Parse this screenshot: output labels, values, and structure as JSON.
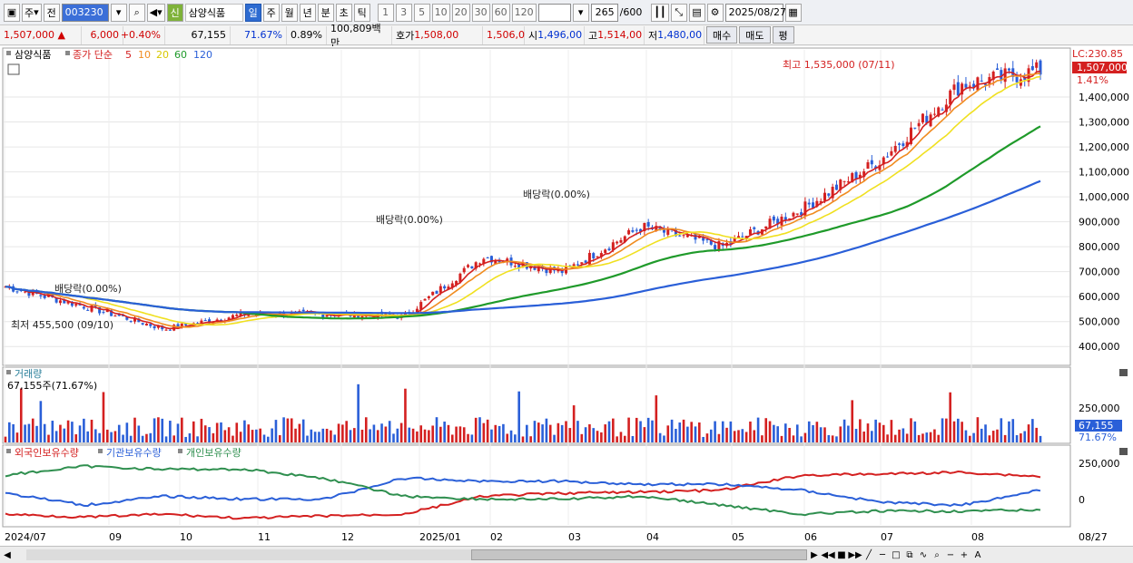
{
  "toolbar": {
    "period_select": "주",
    "prev_label": "전",
    "stock_code": "003230",
    "stock_flag": "신",
    "stock_name": "삼양식품",
    "periods": [
      "일",
      "주",
      "월",
      "년",
      "분",
      "초",
      "틱"
    ],
    "active_period": "일",
    "minute_steps": [
      "1",
      "3",
      "5",
      "10",
      "20",
      "30",
      "60",
      "120"
    ],
    "count_value": "265",
    "count_total": "/600",
    "date_value": "2025/08/27"
  },
  "quote": {
    "price": "1,507,000",
    "change": "6,000",
    "change_pct": "+0.40%",
    "volume": "67,155",
    "volume_ratio": "71.67%",
    "turnover_pct": "0.89%",
    "amount": "100,809백만",
    "bid_label": "호가",
    "bid_ask": "1,508,00",
    "bid2": "1,506,0",
    "open_label": "시",
    "open": "1,496,00",
    "high_label": "고",
    "high": "1,514,00",
    "low_label": "저",
    "low": "1,480,00",
    "buy_label": "매수",
    "sell_label": "매도",
    "detail_label": "평"
  },
  "price_panel": {
    "stock_name": "삼양식품",
    "ma_label": "종가 단순",
    "ma_periods": [
      "5",
      "10",
      "20",
      "60",
      "120"
    ],
    "ma_colors": [
      "#d42020",
      "#f08c20",
      "#f0e020",
      "#1f9a2a",
      "#2a5fd8"
    ],
    "lc_label": "LC:230.85",
    "price_tag": "1,507,000",
    "pct_tag": "1.41%",
    "y_ticks": [
      "1,400,000",
      "1,300,000",
      "1,200,000",
      "1,100,000",
      "1,000,000",
      "900,000",
      "800,000",
      "700,000",
      "600,000",
      "500,000",
      "400,000"
    ],
    "annotations": {
      "high": "최고 1,535,000 (07/11)",
      "low": "최저 455,500 (09/10)",
      "dividend1": "배당락(0.00%)",
      "dividend2": "배당락(0.00%)",
      "dividend3": "배당락(0.00%)"
    }
  },
  "volume_panel": {
    "title": "거래량",
    "value_label": "67,155주(71.67%)",
    "y_tick": "250,000",
    "tag_value": "67,155",
    "tag_pct": "71.67%"
  },
  "holdings_panel": {
    "legend": [
      "외국인보유수량",
      "기관보유수량",
      "개인보유수량"
    ],
    "colors": [
      "#d42020",
      "#2a5fd8",
      "#2f8f4f"
    ],
    "y_ticks": [
      "250,000",
      "0"
    ]
  },
  "x_axis": {
    "labels": [
      "2024/07",
      "09",
      "10",
      "11",
      "12",
      "2025/01",
      "02",
      "03",
      "04",
      "05",
      "06",
      "07",
      "08"
    ],
    "last_date": "08/27"
  },
  "chart_data": {
    "type": "line",
    "price_series": {
      "name": "close",
      "x": [
        "2024/07",
        "2024/08",
        "2024/09",
        "2024/10",
        "2024/11",
        "2024/12",
        "2025/01",
        "2025/02",
        "2025/03",
        "2025/04",
        "2025/05",
        "2025/06",
        "2025/07",
        "2025/08/27"
      ],
      "values": [
        640000,
        560000,
        470000,
        530000,
        530000,
        520000,
        760000,
        700000,
        880000,
        800000,
        950000,
        1150000,
        1450000,
        1507000
      ]
    },
    "ylim": [
      350000,
      1560000
    ]
  }
}
